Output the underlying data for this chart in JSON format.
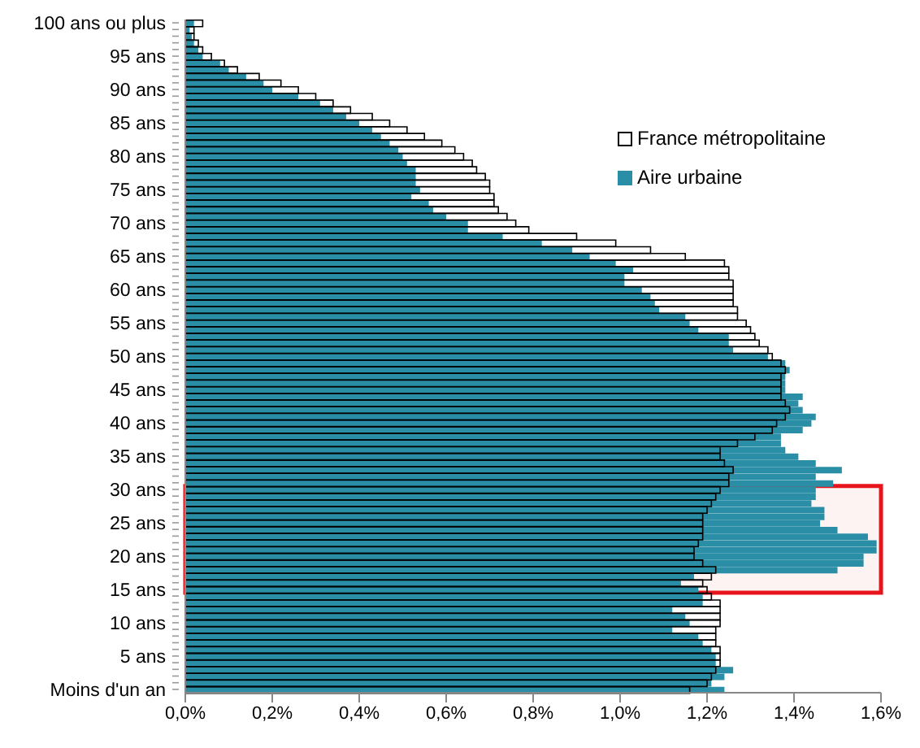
{
  "chart_data": {
    "type": "bar",
    "orientation": "horizontal",
    "categories": [
      "100 ans ou plus",
      null,
      null,
      null,
      null,
      "95 ans",
      null,
      null,
      null,
      null,
      "90 ans",
      null,
      null,
      null,
      null,
      "85 ans",
      null,
      null,
      null,
      null,
      "80 ans",
      null,
      null,
      null,
      null,
      "75 ans",
      null,
      null,
      null,
      null,
      "70 ans",
      null,
      null,
      null,
      null,
      "65 ans",
      null,
      null,
      null,
      null,
      "60 ans",
      null,
      null,
      null,
      null,
      "55 ans",
      null,
      null,
      null,
      null,
      "50 ans",
      null,
      null,
      null,
      null,
      "45 ans",
      null,
      null,
      null,
      null,
      "40 ans",
      null,
      null,
      null,
      null,
      "35 ans",
      null,
      null,
      null,
      null,
      "30 ans",
      null,
      null,
      null,
      null,
      "25 ans",
      null,
      null,
      null,
      null,
      "20 ans",
      null,
      null,
      null,
      null,
      "15 ans",
      null,
      null,
      null,
      null,
      "10 ans",
      null,
      null,
      null,
      null,
      "5 ans",
      null,
      null,
      null,
      null,
      "Moins d'un an"
    ],
    "series": [
      {
        "name": "France métropolitaine",
        "color": "#000000",
        "values": [
          0.04,
          0.02,
          0.02,
          0.03,
          0.04,
          0.06,
          0.09,
          0.12,
          0.17,
          0.22,
          0.26,
          0.3,
          0.34,
          0.38,
          0.43,
          0.47,
          0.51,
          0.55,
          0.59,
          0.62,
          0.64,
          0.66,
          0.67,
          0.69,
          0.7,
          0.7,
          0.71,
          0.71,
          0.72,
          0.74,
          0.76,
          0.79,
          0.9,
          0.99,
          1.07,
          1.15,
          1.24,
          1.25,
          1.25,
          1.26,
          1.26,
          1.26,
          1.26,
          1.27,
          1.27,
          1.29,
          1.3,
          1.31,
          1.32,
          1.34,
          1.35,
          1.37,
          1.38,
          1.37,
          1.37,
          1.37,
          1.37,
          1.38,
          1.39,
          1.38,
          1.36,
          1.35,
          1.31,
          1.27,
          1.23,
          1.23,
          1.24,
          1.26,
          1.25,
          1.25,
          1.23,
          1.22,
          1.21,
          1.2,
          1.19,
          1.19,
          1.19,
          1.19,
          1.18,
          1.17,
          1.17,
          1.19,
          1.22,
          1.21,
          1.19,
          1.2,
          1.21,
          1.23,
          1.23,
          1.23,
          1.23,
          1.22,
          1.22,
          1.22,
          1.23,
          1.23,
          1.23,
          1.22,
          1.21,
          1.2,
          1.16
        ]
      },
      {
        "name": "Aire urbaine",
        "color": "#2a8fa6",
        "values": [
          0.02,
          0.01,
          0.015,
          0.02,
          0.03,
          0.04,
          0.08,
          0.1,
          0.14,
          0.18,
          0.2,
          0.26,
          0.31,
          0.34,
          0.37,
          0.4,
          0.43,
          0.45,
          0.47,
          0.49,
          0.5,
          0.51,
          0.53,
          0.53,
          0.53,
          0.54,
          0.52,
          0.56,
          0.57,
          0.6,
          0.65,
          0.65,
          0.73,
          0.82,
          0.89,
          0.93,
          0.99,
          1.03,
          1.01,
          1.01,
          1.05,
          1.07,
          1.08,
          1.09,
          1.15,
          1.16,
          1.18,
          1.25,
          1.25,
          1.26,
          1.34,
          1.38,
          1.39,
          1.38,
          1.38,
          1.38,
          1.42,
          1.41,
          1.42,
          1.45,
          1.44,
          1.42,
          1.37,
          1.37,
          1.38,
          1.41,
          1.45,
          1.51,
          1.45,
          1.49,
          1.45,
          1.45,
          1.44,
          1.47,
          1.47,
          1.46,
          1.5,
          1.57,
          1.59,
          1.59,
          1.56,
          1.56,
          1.5,
          1.17,
          1.14,
          1.18,
          1.19,
          1.19,
          1.12,
          1.15,
          1.16,
          1.12,
          1.18,
          1.19,
          1.21,
          1.22,
          1.22,
          1.26,
          1.24,
          1.21,
          1.24
        ]
      }
    ],
    "xlim": [
      0,
      1.6
    ],
    "xticks": [
      {
        "value": 0,
        "label": "0,0%"
      },
      {
        "value": 0.2,
        "label": "0,2%"
      },
      {
        "value": 0.4,
        "label": "0,4%"
      },
      {
        "value": 0.6,
        "label": "0,6%"
      },
      {
        "value": 0.8,
        "label": "0,8%"
      },
      {
        "value": 1.0,
        "label": "1,0%"
      },
      {
        "value": 1.2,
        "label": "1,2%"
      },
      {
        "value": 1.4,
        "label": "1,4%"
      },
      {
        "value": 1.6,
        "label": "1,6%"
      }
    ],
    "bands": [
      {
        "axis": "y",
        "from": "30 ans",
        "to": "15 ans",
        "color": "#e8141c"
      }
    ],
    "legend": "top right"
  }
}
